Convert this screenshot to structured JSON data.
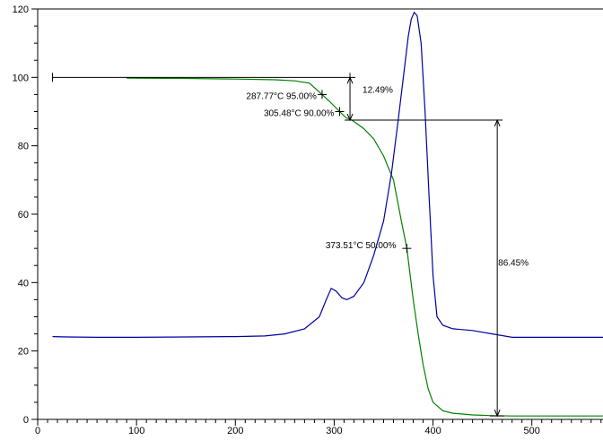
{
  "chart_data": {
    "type": "line",
    "title": "",
    "xlabel": "",
    "ylabel": "",
    "xlim": [
      0,
      572
    ],
    "ylim": [
      0,
      120
    ],
    "x_ticks": [
      0,
      100,
      200,
      300,
      400,
      500
    ],
    "y_ticks": [
      0,
      20,
      40,
      60,
      80,
      100,
      120
    ],
    "grid": false,
    "series": [
      {
        "color": "#008000",
        "points": [
          [
            90,
            99.8
          ],
          [
            150,
            99.7
          ],
          [
            200,
            99.5
          ],
          [
            240,
            99.3
          ],
          [
            260,
            99
          ],
          [
            275,
            98.3
          ],
          [
            287.77,
            95
          ],
          [
            297,
            92.5
          ],
          [
            305.48,
            90
          ],
          [
            312,
            88.2
          ],
          [
            318,
            87.5
          ],
          [
            330,
            85
          ],
          [
            340,
            82
          ],
          [
            350,
            77
          ],
          [
            360,
            70
          ],
          [
            368,
            58
          ],
          [
            373.51,
            50
          ],
          [
            380,
            35
          ],
          [
            385,
            25
          ],
          [
            390,
            16
          ],
          [
            395,
            9
          ],
          [
            400,
            5
          ],
          [
            410,
            2.5
          ],
          [
            420,
            1.8
          ],
          [
            440,
            1.3
          ],
          [
            460,
            1.1
          ],
          [
            480,
            1
          ],
          [
            520,
            1
          ],
          [
            572,
            1
          ]
        ]
      },
      {
        "color": "#0000a0",
        "points": [
          [
            15,
            24.2
          ],
          [
            30,
            24.1
          ],
          [
            60,
            24
          ],
          [
            100,
            24
          ],
          [
            150,
            24.1
          ],
          [
            200,
            24.2
          ],
          [
            230,
            24.4
          ],
          [
            250,
            25
          ],
          [
            270,
            26.5
          ],
          [
            285,
            30
          ],
          [
            292,
            35
          ],
          [
            297,
            38.3
          ],
          [
            302,
            37.5
          ],
          [
            308,
            35.5
          ],
          [
            313,
            35
          ],
          [
            320,
            36
          ],
          [
            330,
            40
          ],
          [
            340,
            48
          ],
          [
            350,
            58
          ],
          [
            358,
            72
          ],
          [
            365,
            88
          ],
          [
            370,
            100
          ],
          [
            375,
            112
          ],
          [
            378,
            117
          ],
          [
            381,
            119
          ],
          [
            384,
            118
          ],
          [
            388,
            110
          ],
          [
            392,
            90
          ],
          [
            396,
            65
          ],
          [
            400,
            42
          ],
          [
            404,
            30
          ],
          [
            410,
            27.5
          ],
          [
            420,
            26.5
          ],
          [
            440,
            26
          ],
          [
            460,
            25
          ],
          [
            480,
            24
          ],
          [
            500,
            24
          ],
          [
            572,
            24
          ]
        ]
      }
    ],
    "annotations": {
      "onset_95": {
        "x": 287.77,
        "y": 95,
        "label": "287.77°C 95.00%"
      },
      "onset_90": {
        "x": 305.48,
        "y": 90,
        "label": "305.48°C 90.00%"
      },
      "mid_50": {
        "x": 373.51,
        "y": 50,
        "label": "373.51°C 50.00%"
      },
      "step1": {
        "x": 316,
        "y_top": 100,
        "y_bottom": 87.5,
        "line_from_x": 15,
        "label": "12.49%"
      },
      "step2": {
        "x": 465,
        "y_top": 87.5,
        "y_bottom": 1,
        "label": "86.45%"
      }
    }
  }
}
